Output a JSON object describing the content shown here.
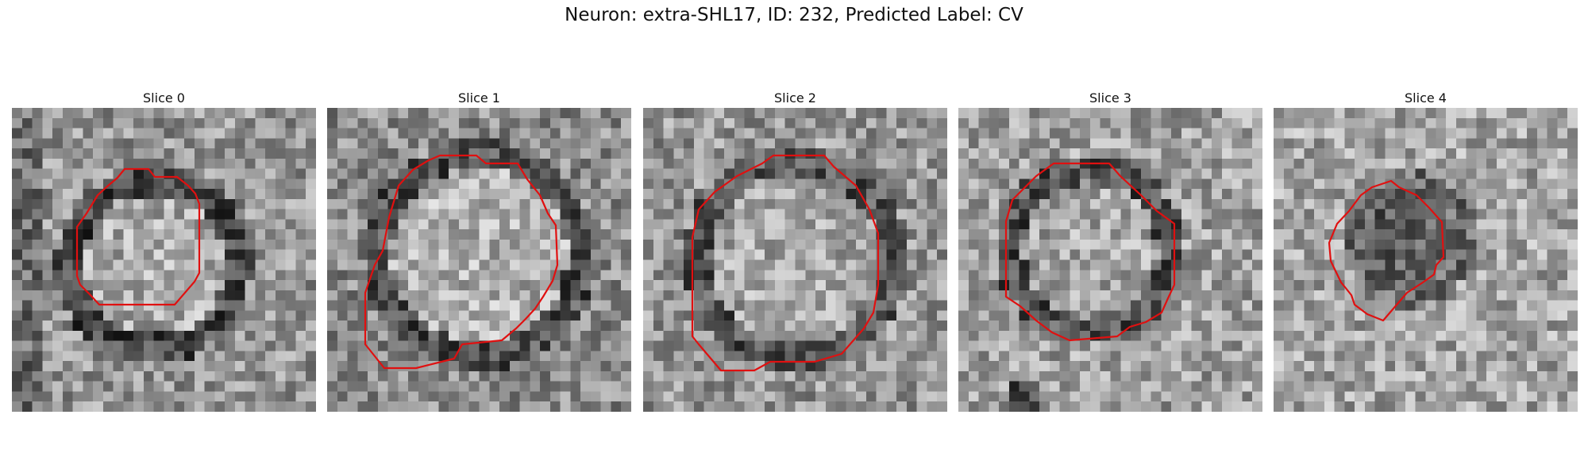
{
  "figure": {
    "title": "Neuron: extra-SHL17, ID: 232, Predicted Label: CV"
  },
  "colors": {
    "contour": "#e01010"
  },
  "panels": [
    {
      "title": "Slice 0"
    },
    {
      "title": "Slice 1"
    },
    {
      "title": "Slice 2"
    },
    {
      "title": "Slice 3"
    },
    {
      "title": "Slice 4"
    }
  ]
}
